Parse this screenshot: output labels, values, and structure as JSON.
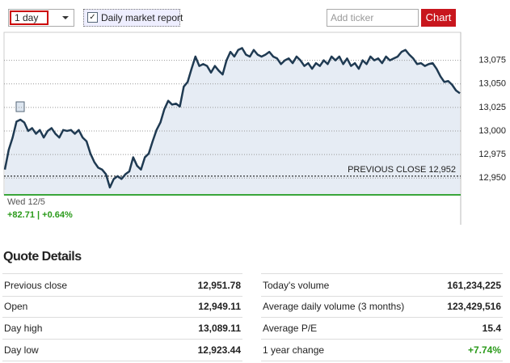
{
  "controls": {
    "period": "1 day",
    "report_label": "Daily market report",
    "ticker_placeholder": "Add ticker",
    "chart_button": "Chart"
  },
  "chart": {
    "type": "line",
    "color": "#1f3a52",
    "ylim": [
      12933,
      13103
    ],
    "yticks": [
      {
        "value": 12950,
        "label": "12,950"
      },
      {
        "value": 12975,
        "label": "12,975"
      },
      {
        "value": 13000,
        "label": "13,000"
      },
      {
        "value": 13025,
        "label": "13,025"
      },
      {
        "value": 13050,
        "label": "13,050"
      },
      {
        "value": 13075,
        "label": "13,075"
      }
    ],
    "previous_close": {
      "value": 12952,
      "label": "PREVIOUS CLOSE 12,952"
    },
    "values": [
      12959,
      12980,
      12993,
      13010,
      13012,
      13009,
      13000,
      13003,
      12997,
      13001,
      12993,
      13000,
      13003,
      12997,
      12993,
      13001,
      13000,
      13001,
      12997,
      13001,
      12993,
      12989,
      12976,
      12967,
      12961,
      12959,
      12954,
      12940,
      12949,
      12952,
      12949,
      12954,
      12957,
      12972,
      12963,
      12959,
      12972,
      12976,
      12989,
      13001,
      13009,
      13023,
      13032,
      13028,
      13029,
      13026,
      13047,
      13052,
      13066,
      13079,
      13069,
      13071,
      13069,
      13062,
      13069,
      13064,
      13060,
      13075,
      13084,
      13079,
      13086,
      13088,
      13081,
      13079,
      13086,
      13081,
      13079,
      13081,
      13084,
      13079,
      13077,
      13071,
      13075,
      13077,
      13072,
      13079,
      13075,
      13069,
      13072,
      13066,
      13072,
      13069,
      13075,
      13071,
      13079,
      13075,
      13079,
      13071,
      13077,
      13069,
      13072,
      13066,
      13075,
      13071,
      13079,
      13075,
      13077,
      13072,
      13079,
      13075,
      13077,
      13079,
      13084,
      13086,
      13081,
      13077,
      13071,
      13072,
      13069,
      13071,
      13072,
      13066,
      13058,
      13052,
      13053,
      13049,
      13043,
      13040
    ],
    "date": "Wed 12/5",
    "change": "+82.71 | +0.64%"
  },
  "quote": {
    "title": "Quote Details",
    "left": [
      [
        "Previous close",
        "12,951.78"
      ],
      [
        "Open",
        "12,949.11"
      ],
      [
        "Day high",
        "13,089.11"
      ],
      [
        "Day low",
        "12,923.44"
      ]
    ],
    "right": [
      [
        "Today's volume",
        "161,234,225"
      ],
      [
        "Average daily volume (3 months)",
        "123,429,516"
      ],
      [
        "Average P/E",
        "15.4"
      ],
      [
        "1 year change",
        "+7.74%"
      ]
    ]
  }
}
